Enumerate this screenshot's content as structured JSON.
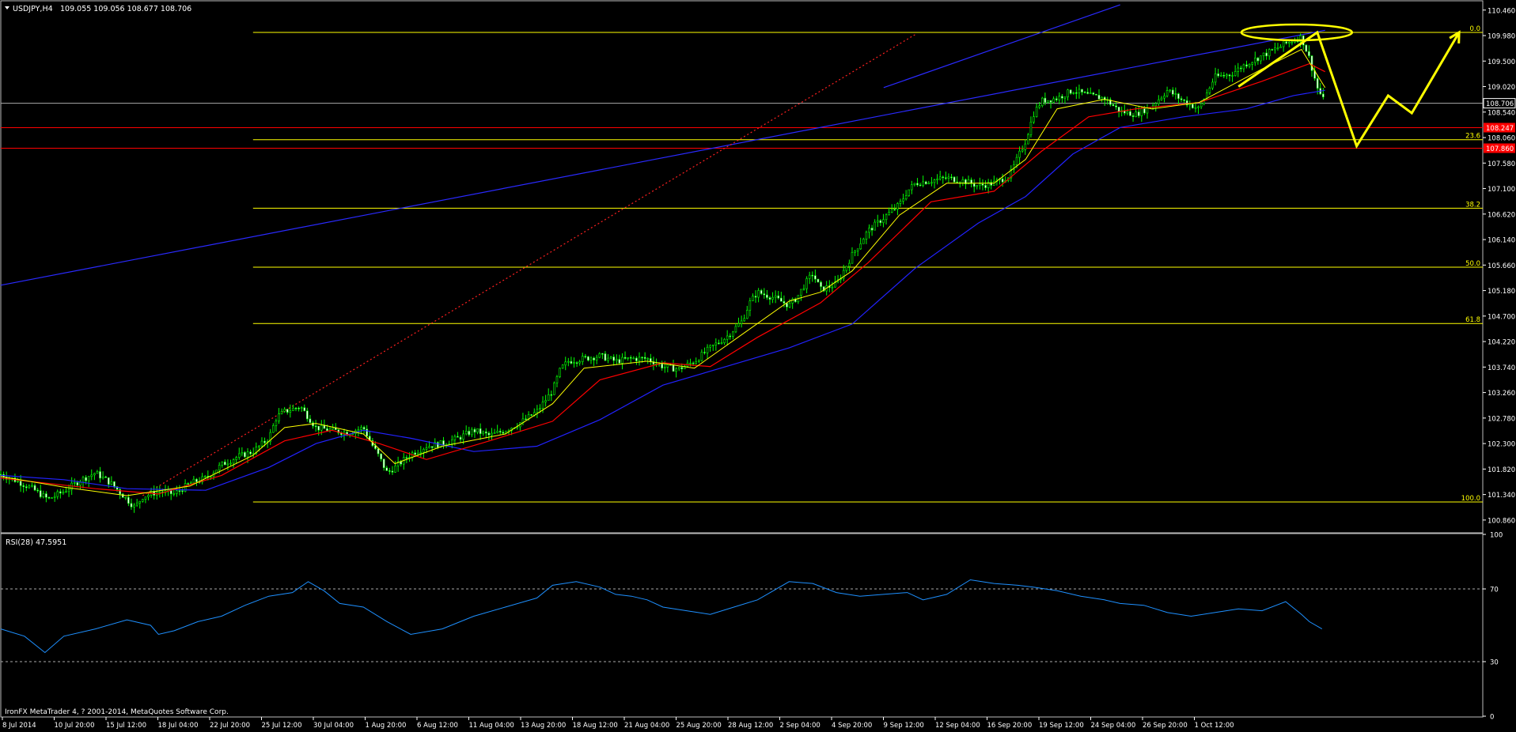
{
  "header": {
    "symbol_label": "USDJPY,H4",
    "ohlc": "109.055 109.056 108.677 108.706"
  },
  "footer": {
    "copyright": "IronFX MetaTrader 4, ? 2001-2014, MetaQuotes Software Corp."
  },
  "rsi": {
    "label": "RSI(28) 47.5951"
  },
  "colors": {
    "background": "#000000",
    "candles": "#00ff00",
    "ma_fast": "#ffff00",
    "ma_mid": "#ff0000",
    "ma_slow": "#2222ff",
    "fib": "#ffff00",
    "channel": "#2a2aff",
    "rsi_line": "#1e90ff",
    "axis_text": "#ffffff"
  },
  "chart_data": [
    {
      "type": "candlestick",
      "title": "USDJPY,H4",
      "ylim": [
        100.62,
        110.62
      ],
      "y_ticks": [
        "110.460",
        "109.980",
        "109.500",
        "109.020",
        "108.540",
        "108.060",
        "107.580",
        "107.100",
        "106.620",
        "106.140",
        "105.660",
        "105.180",
        "104.700",
        "104.220",
        "103.740",
        "103.260",
        "102.780",
        "102.300",
        "101.820",
        "101.340",
        "100.860"
      ],
      "x_ticks": [
        "8 Jul 2014",
        "10 Jul 20:00",
        "15 Jul 12:00",
        "18 Jul 04:00",
        "22 Jul 20:00",
        "25 Jul 12:00",
        "30 Jul 04:00",
        "1 Aug 20:00",
        "6 Aug 12:00",
        "11 Aug 04:00",
        "13 Aug 20:00",
        "18 Aug 12:00",
        "21 Aug 04:00",
        "25 Aug 20:00",
        "28 Aug 12:00",
        "2 Sep 04:00",
        "4 Sep 20:00",
        "9 Sep 12:00",
        "12 Sep 04:00",
        "16 Sep 20:00",
        "19 Sep 12:00",
        "24 Sep 04:00",
        "26 Sep 20:00",
        "1 Oct 12:00"
      ],
      "close_path": [
        [
          0,
          101.72
        ],
        [
          10,
          101.6
        ],
        [
          20,
          101.45
        ],
        [
          30,
          101.25
        ],
        [
          40,
          101.4
        ],
        [
          50,
          101.6
        ],
        [
          60,
          101.75
        ],
        [
          70,
          101.55
        ],
        [
          80,
          101.25
        ],
        [
          85,
          101.1
        ],
        [
          90,
          101.3
        ],
        [
          100,
          101.4
        ],
        [
          110,
          101.35
        ],
        [
          120,
          101.55
        ],
        [
          130,
          101.65
        ],
        [
          140,
          101.9
        ],
        [
          150,
          102.05
        ],
        [
          160,
          102.15
        ],
        [
          170,
          102.4
        ],
        [
          175,
          102.8
        ],
        [
          180,
          102.9
        ],
        [
          190,
          103.0
        ],
        [
          195,
          102.8
        ],
        [
          200,
          102.6
        ],
        [
          210,
          102.55
        ],
        [
          220,
          102.5
        ],
        [
          230,
          102.6
        ],
        [
          235,
          102.3
        ],
        [
          240,
          102.05
        ],
        [
          245,
          101.75
        ],
        [
          250,
          101.85
        ],
        [
          260,
          102.1
        ],
        [
          270,
          102.25
        ],
        [
          280,
          102.3
        ],
        [
          290,
          102.4
        ],
        [
          300,
          102.55
        ],
        [
          310,
          102.45
        ],
        [
          320,
          102.55
        ],
        [
          330,
          102.7
        ],
        [
          340,
          102.9
        ],
        [
          350,
          103.3
        ],
        [
          355,
          103.7
        ],
        [
          360,
          103.85
        ],
        [
          370,
          103.9
        ],
        [
          380,
          103.95
        ],
        [
          390,
          103.85
        ],
        [
          400,
          103.9
        ],
        [
          410,
          103.9
        ],
        [
          420,
          103.75
        ],
        [
          430,
          103.7
        ],
        [
          440,
          103.85
        ],
        [
          450,
          104.1
        ],
        [
          460,
          104.3
        ],
        [
          470,
          104.6
        ],
        [
          475,
          104.95
        ],
        [
          480,
          105.15
        ],
        [
          490,
          105.05
        ],
        [
          500,
          104.9
        ],
        [
          505,
          105.05
        ],
        [
          510,
          105.3
        ],
        [
          515,
          105.5
        ],
        [
          520,
          105.2
        ],
        [
          530,
          105.3
        ],
        [
          540,
          105.85
        ],
        [
          550,
          106.3
        ],
        [
          560,
          106.55
        ],
        [
          570,
          106.8
        ],
        [
          575,
          107.05
        ],
        [
          580,
          107.2
        ],
        [
          590,
          107.25
        ],
        [
          600,
          107.3
        ],
        [
          610,
          107.25
        ],
        [
          620,
          107.15
        ],
        [
          630,
          107.2
        ],
        [
          640,
          107.35
        ],
        [
          650,
          108.0
        ],
        [
          655,
          108.5
        ],
        [
          660,
          108.75
        ],
        [
          670,
          108.8
        ],
        [
          680,
          108.95
        ],
        [
          690,
          108.85
        ],
        [
          700,
          108.8
        ],
        [
          710,
          108.55
        ],
        [
          720,
          108.5
        ],
        [
          730,
          108.65
        ],
        [
          740,
          108.95
        ],
        [
          750,
          108.75
        ],
        [
          760,
          108.6
        ],
        [
          770,
          109.2
        ],
        [
          780,
          109.25
        ],
        [
          790,
          109.45
        ],
        [
          800,
          109.6
        ],
        [
          810,
          109.75
        ],
        [
          820,
          109.9
        ],
        [
          825,
          109.95
        ],
        [
          830,
          109.55
        ],
        [
          835,
          109.0
        ],
        [
          840,
          108.7
        ]
      ],
      "ma_fast_path": [
        [
          0,
          101.68
        ],
        [
          40,
          101.48
        ],
        [
          80,
          101.32
        ],
        [
          120,
          101.5
        ],
        [
          160,
          102.08
        ],
        [
          180,
          102.6
        ],
        [
          200,
          102.68
        ],
        [
          230,
          102.48
        ],
        [
          250,
          101.92
        ],
        [
          280,
          102.25
        ],
        [
          320,
          102.48
        ],
        [
          350,
          103.05
        ],
        [
          370,
          103.72
        ],
        [
          410,
          103.85
        ],
        [
          440,
          103.72
        ],
        [
          470,
          104.35
        ],
        [
          500,
          104.98
        ],
        [
          520,
          105.15
        ],
        [
          540,
          105.55
        ],
        [
          570,
          106.6
        ],
        [
          600,
          107.2
        ],
        [
          630,
          107.2
        ],
        [
          650,
          107.65
        ],
        [
          670,
          108.6
        ],
        [
          700,
          108.78
        ],
        [
          730,
          108.6
        ],
        [
          760,
          108.72
        ],
        [
          800,
          109.35
        ],
        [
          825,
          109.72
        ],
        [
          840,
          109.0
        ]
      ],
      "ma_mid_path": [
        [
          0,
          101.65
        ],
        [
          60,
          101.45
        ],
        [
          100,
          101.35
        ],
        [
          140,
          101.7
        ],
        [
          180,
          102.35
        ],
        [
          210,
          102.55
        ],
        [
          240,
          102.3
        ],
        [
          270,
          102.0
        ],
        [
          310,
          102.35
        ],
        [
          350,
          102.72
        ],
        [
          380,
          103.5
        ],
        [
          420,
          103.82
        ],
        [
          450,
          103.75
        ],
        [
          480,
          104.3
        ],
        [
          520,
          104.95
        ],
        [
          550,
          105.7
        ],
        [
          590,
          106.85
        ],
        [
          630,
          107.05
        ],
        [
          660,
          107.8
        ],
        [
          690,
          108.45
        ],
        [
          720,
          108.6
        ],
        [
          760,
          108.72
        ],
        [
          800,
          109.12
        ],
        [
          830,
          109.45
        ],
        [
          840,
          109.3
        ]
      ],
      "ma_slow_path": [
        [
          0,
          101.7
        ],
        [
          40,
          101.62
        ],
        [
          80,
          101.45
        ],
        [
          130,
          101.42
        ],
        [
          170,
          101.85
        ],
        [
          200,
          102.3
        ],
        [
          230,
          102.55
        ],
        [
          260,
          102.4
        ],
        [
          300,
          102.15
        ],
        [
          340,
          102.25
        ],
        [
          380,
          102.75
        ],
        [
          420,
          103.4
        ],
        [
          460,
          103.75
        ],
        [
          500,
          104.1
        ],
        [
          540,
          104.55
        ],
        [
          580,
          105.6
        ],
        [
          620,
          106.45
        ],
        [
          650,
          106.95
        ],
        [
          680,
          107.75
        ],
        [
          710,
          108.25
        ],
        [
          750,
          108.45
        ],
        [
          790,
          108.6
        ],
        [
          820,
          108.85
        ],
        [
          840,
          108.95
        ]
      ],
      "price_lines": [
        {
          "name": "current",
          "value": 108.706,
          "label": "108.706"
        },
        {
          "name": "support-1",
          "value": 108.247,
          "label": "108.247"
        },
        {
          "name": "support-2",
          "value": 107.86,
          "label": "107.860"
        }
      ],
      "fibonacci": {
        "levels": [
          {
            "label": "0.0",
            "value": 110.04
          },
          {
            "label": "23.6",
            "value": 108.02
          },
          {
            "label": "38.2",
            "value": 106.73
          },
          {
            "label": "50.0",
            "value": 105.62
          },
          {
            "label": "61.8",
            "value": 104.56
          },
          {
            "label": "100.0",
            "value": 101.2
          }
        ]
      },
      "trendlines": [
        {
          "name": "channel-lower",
          "start": [
            0,
            105.28
          ],
          "end": [
            840,
            110.08
          ]
        },
        {
          "name": "channel-upper",
          "start": [
            560,
            109.0
          ],
          "end": [
            710,
            110.56
          ]
        },
        {
          "name": "red-dotted",
          "start": [
            90,
            101.32
          ],
          "end": [
            580,
            110.0
          ]
        }
      ],
      "projection": [
        [
          785,
          109.02
        ],
        [
          835,
          110.04
        ],
        [
          860,
          107.9
        ],
        [
          880,
          108.85
        ],
        [
          895,
          108.52
        ],
        [
          925,
          110.04
        ]
      ]
    },
    {
      "type": "line",
      "title": "RSI(28) 47.5951",
      "ylim": [
        0,
        100
      ],
      "y_ticks": [
        "100",
        "70",
        "30",
        "0"
      ],
      "levels": [
        70,
        30
      ],
      "path": [
        [
          0,
          48
        ],
        [
          15,
          44
        ],
        [
          28,
          35
        ],
        [
          40,
          44
        ],
        [
          60,
          48
        ],
        [
          80,
          53
        ],
        [
          95,
          50
        ],
        [
          100,
          45
        ],
        [
          110,
          47
        ],
        [
          125,
          52
        ],
        [
          140,
          55
        ],
        [
          155,
          61
        ],
        [
          170,
          66
        ],
        [
          185,
          68
        ],
        [
          195,
          74
        ],
        [
          205,
          69
        ],
        [
          215,
          62
        ],
        [
          230,
          60
        ],
        [
          245,
          52
        ],
        [
          260,
          45
        ],
        [
          280,
          48
        ],
        [
          300,
          55
        ],
        [
          320,
          60
        ],
        [
          340,
          65
        ],
        [
          350,
          72
        ],
        [
          365,
          74
        ],
        [
          380,
          71
        ],
        [
          390,
          67
        ],
        [
          400,
          66
        ],
        [
          410,
          64
        ],
        [
          420,
          60
        ],
        [
          435,
          58
        ],
        [
          450,
          56
        ],
        [
          465,
          60
        ],
        [
          480,
          64
        ],
        [
          490,
          69
        ],
        [
          500,
          74
        ],
        [
          515,
          73
        ],
        [
          530,
          68
        ],
        [
          545,
          66
        ],
        [
          560,
          67
        ],
        [
          575,
          68
        ],
        [
          585,
          64
        ],
        [
          600,
          67
        ],
        [
          615,
          75
        ],
        [
          630,
          73
        ],
        [
          645,
          72
        ],
        [
          655,
          71
        ],
        [
          670,
          69
        ],
        [
          685,
          66
        ],
        [
          700,
          64
        ],
        [
          710,
          62
        ],
        [
          725,
          61
        ],
        [
          740,
          57
        ],
        [
          755,
          55
        ],
        [
          770,
          57
        ],
        [
          785,
          59
        ],
        [
          800,
          58
        ],
        [
          815,
          63
        ],
        [
          825,
          56
        ],
        [
          830,
          52
        ],
        [
          838,
          48
        ]
      ]
    }
  ]
}
